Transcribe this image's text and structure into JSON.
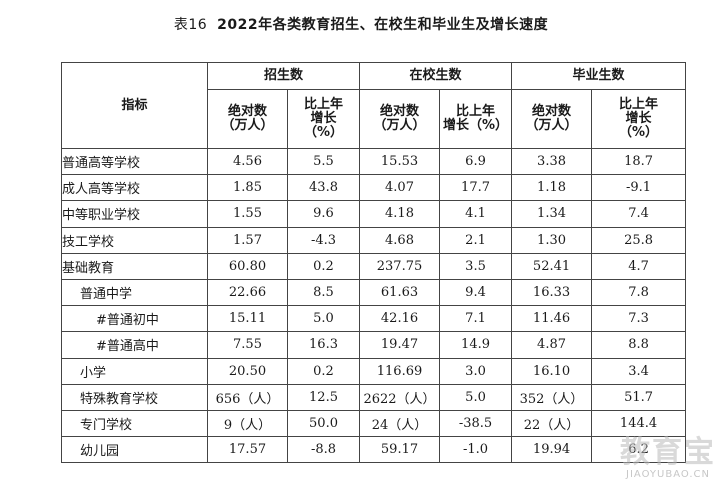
{
  "title": {
    "number": "表16",
    "text": "2022年各类教育招生、在校生和毕业生及增长速度"
  },
  "headers": {
    "indicator": "指标",
    "groups": [
      "招生数",
      "在校生数",
      "毕业生数"
    ],
    "abs": "绝对数\n（万人）",
    "growth_a": "比上年\n增长\n（%）",
    "growth_b": "比上年\n增长（%）"
  },
  "rows": [
    {
      "name": "普通高等学校",
      "level": 0,
      "values": [
        "4.56",
        "5.5",
        "15.53",
        "6.9",
        "3.38",
        "18.7"
      ]
    },
    {
      "name": "成人高等学校",
      "level": 0,
      "values": [
        "1.85",
        "43.8",
        "4.07",
        "17.7",
        "1.18",
        "-9.1"
      ]
    },
    {
      "name": "中等职业学校",
      "level": 0,
      "values": [
        "1.55",
        "9.6",
        "4.18",
        "4.1",
        "1.34",
        "7.4"
      ]
    },
    {
      "name": "技工学校",
      "level": 0,
      "values": [
        "1.57",
        "-4.3",
        "4.68",
        "2.1",
        "1.30",
        "25.8"
      ]
    },
    {
      "name": "基础教育",
      "level": 0,
      "values": [
        "60.80",
        "0.2",
        "237.75",
        "3.5",
        "52.41",
        "4.7"
      ]
    },
    {
      "name": "普通中学",
      "level": 1,
      "values": [
        "22.66",
        "8.5",
        "61.63",
        "9.4",
        "16.33",
        "7.8"
      ]
    },
    {
      "name": "#普通初中",
      "level": 2,
      "values": [
        "15.11",
        "5.0",
        "42.16",
        "7.1",
        "11.46",
        "7.3"
      ]
    },
    {
      "name": "#普通高中",
      "level": 2,
      "values": [
        "7.55",
        "16.3",
        "19.47",
        "14.9",
        "4.87",
        "8.8"
      ]
    },
    {
      "name": "小学",
      "level": 1,
      "values": [
        "20.50",
        "0.2",
        "116.69",
        "3.0",
        "16.10",
        "3.4"
      ]
    },
    {
      "name": "特殊教育学校",
      "level": 1,
      "values": [
        "656（人）",
        "12.5",
        "2622（人）",
        "5.0",
        "352（人）",
        "51.7"
      ]
    },
    {
      "name": "专门学校",
      "level": 1,
      "values": [
        "9（人）",
        "50.0",
        "24（人）",
        "-38.5",
        "22（人）",
        "144.4"
      ]
    },
    {
      "name": "幼儿园",
      "level": 1,
      "values": [
        "17.57",
        "-8.8",
        "59.17",
        "-1.0",
        "19.94",
        "6.2"
      ]
    }
  ],
  "watermark": {
    "logo": "教育宝",
    "url": "JIAOYUBAO.CN"
  }
}
